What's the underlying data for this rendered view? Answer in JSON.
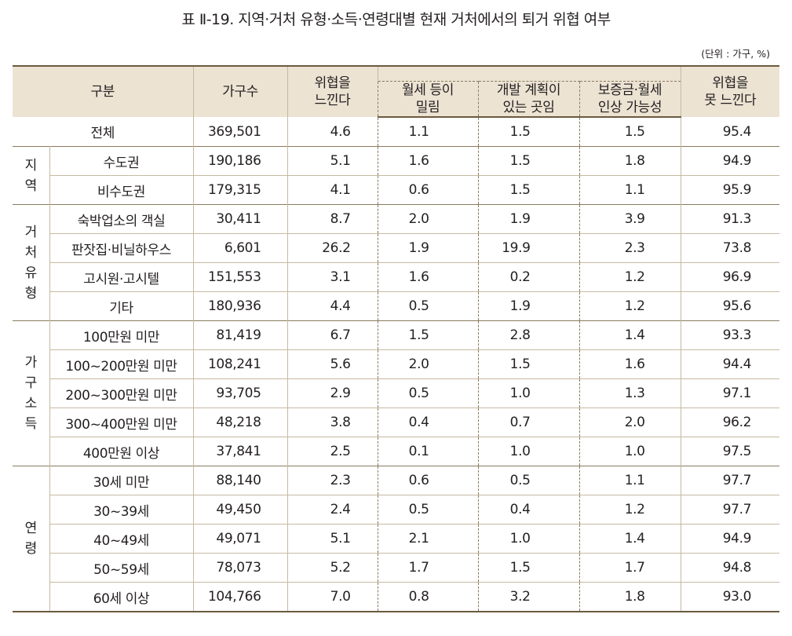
{
  "title": "표 Ⅱ-19. 지역·거처 유형·소득·연령대별 현재 거처에서의 퇴거 위협 여부",
  "unit": "(단위 : 가구, %)",
  "headers": {
    "category": "구분",
    "households": "가구수",
    "threat": "위협을\n느낀다",
    "reason_a": "월세 등이\n밀림",
    "reason_b": "개발 계획이\n있는 곳임",
    "reason_c": "보증금·월세\n인상 가능성",
    "no_threat": "위협을\n못 느낀다"
  },
  "total": {
    "label": "전체",
    "households": "369,501",
    "threat": "4.6",
    "a": "1.1",
    "b": "1.5",
    "c": "1.5",
    "no": "95.4"
  },
  "groups": [
    {
      "label": [
        "지",
        "역"
      ],
      "rows": [
        {
          "label": "수도권",
          "households": "190,186",
          "threat": "5.1",
          "a": "1.6",
          "b": "1.5",
          "c": "1.8",
          "no": "94.9"
        },
        {
          "label": "비수도권",
          "households": "179,315",
          "threat": "4.1",
          "a": "0.6",
          "b": "1.5",
          "c": "1.1",
          "no": "95.9"
        }
      ]
    },
    {
      "label": [
        "거",
        "처",
        "유",
        "형"
      ],
      "rows": [
        {
          "label": "숙박업소의 객실",
          "households": "30,411",
          "threat": "8.7",
          "a": "2.0",
          "b": "1.9",
          "c": "3.9",
          "no": "91.3"
        },
        {
          "label": "판잣집·비닐하우스",
          "households": "6,601",
          "threat": "26.2",
          "a": "1.9",
          "b": "19.9",
          "c": "2.3",
          "no": "73.8"
        },
        {
          "label": "고시원·고시텔",
          "households": "151,553",
          "threat": "3.1",
          "a": "1.6",
          "b": "0.2",
          "c": "1.2",
          "no": "96.9"
        },
        {
          "label": "기타",
          "households": "180,936",
          "threat": "4.4",
          "a": "0.5",
          "b": "1.9",
          "c": "1.2",
          "no": "95.6"
        }
      ]
    },
    {
      "label": [
        "가",
        "구",
        "소",
        "득"
      ],
      "rows": [
        {
          "label": "100만원 미만",
          "households": "81,419",
          "threat": "6.7",
          "a": "1.5",
          "b": "2.8",
          "c": "1.4",
          "no": "93.3"
        },
        {
          "label": "100~200만원 미만",
          "households": "108,241",
          "threat": "5.6",
          "a": "2.0",
          "b": "1.5",
          "c": "1.6",
          "no": "94.4"
        },
        {
          "label": "200~300만원 미만",
          "households": "93,705",
          "threat": "2.9",
          "a": "0.5",
          "b": "1.0",
          "c": "1.3",
          "no": "97.1"
        },
        {
          "label": "300~400만원 미만",
          "households": "48,218",
          "threat": "3.8",
          "a": "0.4",
          "b": "0.7",
          "c": "2.0",
          "no": "96.2"
        },
        {
          "label": "400만원 이상",
          "households": "37,841",
          "threat": "2.5",
          "a": "0.1",
          "b": "1.0",
          "c": "1.0",
          "no": "97.5"
        }
      ]
    },
    {
      "label": [
        "연",
        "령"
      ],
      "rows": [
        {
          "label": "30세 미만",
          "households": "88,140",
          "threat": "2.3",
          "a": "0.6",
          "b": "0.5",
          "c": "1.1",
          "no": "97.7"
        },
        {
          "label": "30~39세",
          "households": "49,450",
          "threat": "2.4",
          "a": "0.5",
          "b": "0.4",
          "c": "1.2",
          "no": "97.7"
        },
        {
          "label": "40~49세",
          "households": "49,071",
          "threat": "5.1",
          "a": "2.1",
          "b": "1.0",
          "c": "1.4",
          "no": "94.9"
        },
        {
          "label": "50~59세",
          "households": "78,073",
          "threat": "5.2",
          "a": "1.7",
          "b": "1.5",
          "c": "1.7",
          "no": "94.8"
        },
        {
          "label": "60세 이상",
          "households": "104,766",
          "threat": "7.0",
          "a": "0.8",
          "b": "3.2",
          "c": "1.8",
          "no": "93.0"
        }
      ]
    }
  ]
}
